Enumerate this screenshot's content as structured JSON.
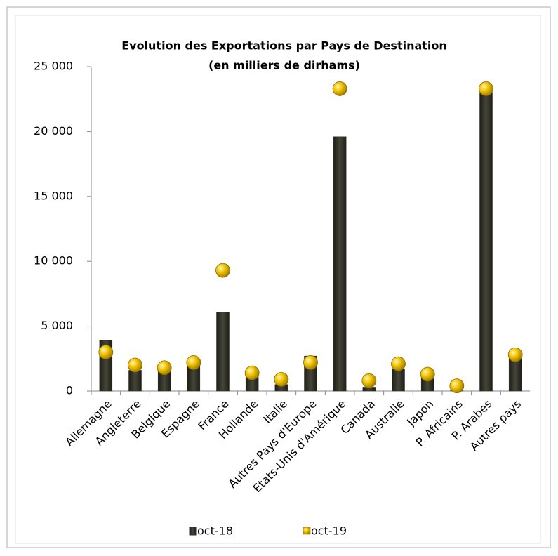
{
  "chart_data": {
    "type": "bar",
    "title": "Evolution des Exportations par Pays de Destination",
    "subtitle": "(en milliers de dirhams)",
    "categories": [
      "Allemagne",
      "Angleterre",
      "Belgique",
      "Espagne",
      "France",
      "Hollande",
      "Italie",
      "Autres Pays d'Europe",
      "Etats-Unis d'Amérique",
      "Canada",
      "Australie",
      "Japon",
      "P. Africains",
      "P. Arabes",
      "Autres pays"
    ],
    "series": [
      {
        "name": "oct-18",
        "color": "#2e2e24",
        "style": "bar",
        "values": [
          3900,
          1600,
          1600,
          1900,
          6100,
          1100,
          500,
          2700,
          19600,
          300,
          1700,
          1000,
          100,
          23000,
          2500
        ]
      },
      {
        "name": "oct-19",
        "color": "#f2c200",
        "style": "marker",
        "values": [
          3000,
          2000,
          1800,
          2200,
          9300,
          1400,
          900,
          2200,
          23300,
          800,
          2100,
          1300,
          400,
          23300,
          2800
        ]
      }
    ],
    "ylim": [
      0,
      25000
    ],
    "yticks": [
      0,
      {
        "value": 5000,
        "label": "5 000"
      },
      {
        "value": 10000,
        "label": "10 000"
      },
      {
        "value": 15000,
        "label": "15 000"
      },
      {
        "value": 20000,
        "label": "20 000"
      },
      {
        "value": 25000,
        "label": "25 000"
      }
    ],
    "grid": false,
    "legend": "bottom"
  }
}
